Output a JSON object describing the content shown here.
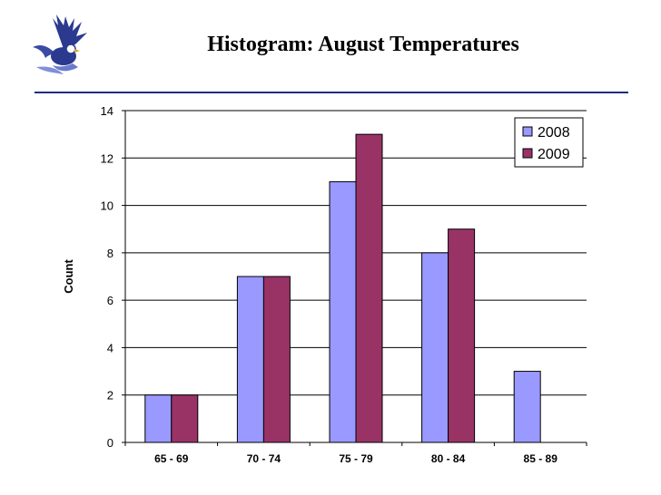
{
  "slide": {
    "title": "Histogram: August Temperatures"
  },
  "colors": {
    "series_2008": "#9999ff",
    "series_2009": "#993366",
    "title_rule": "#1f2a8a"
  },
  "logo": {
    "icon": "eagle-logo-icon"
  },
  "chart_data": {
    "type": "bar",
    "title": "Histogram: August Temperatures",
    "xlabel": "",
    "ylabel": "Count",
    "ylim": [
      0,
      14
    ],
    "yticks": [
      0,
      2,
      4,
      6,
      8,
      10,
      12,
      14
    ],
    "grid": true,
    "legend_position": "top-right",
    "categories": [
      "65 - 69",
      "70 - 74",
      "75 - 79",
      "80 - 84",
      "85 - 89"
    ],
    "series": [
      {
        "name": "2008",
        "values": [
          2,
          7,
          11,
          8,
          3
        ]
      },
      {
        "name": "2009",
        "values": [
          2,
          7,
          13,
          9,
          0
        ]
      }
    ]
  }
}
